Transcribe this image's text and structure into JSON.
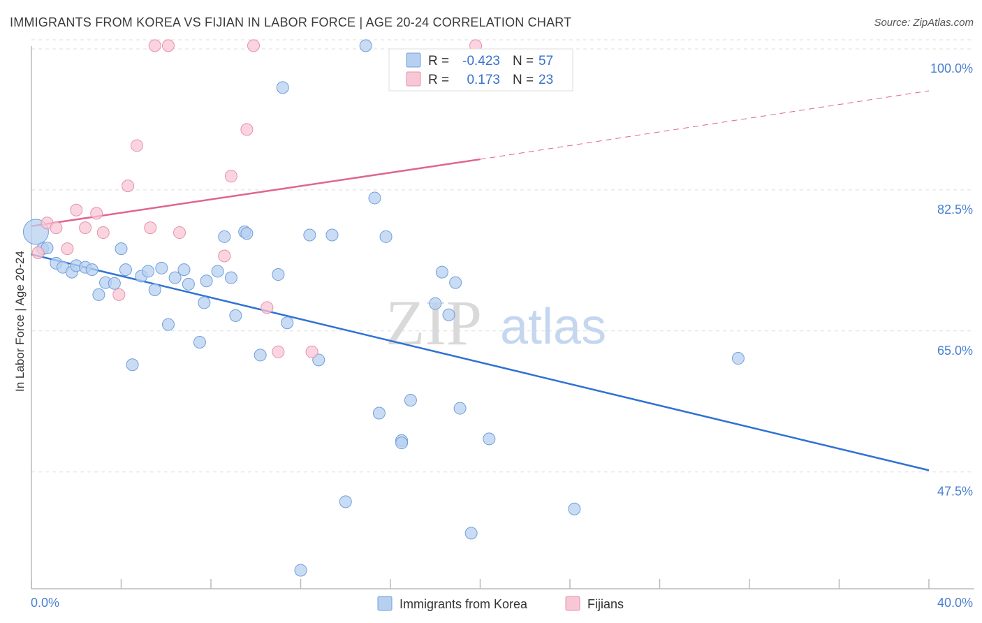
{
  "title": "IMMIGRANTS FROM KOREA VS FIJIAN IN LABOR FORCE | AGE 20-24 CORRELATION CHART",
  "source": "Source: ZipAtlas.com",
  "watermark": {
    "zip": "ZIP",
    "atlas": "atlas"
  },
  "colors": {
    "korea_fill": "#b7d0f0",
    "korea_stroke": "#6f9fdc",
    "korea_line": "#2f72d4",
    "fiji_fill": "#f8c7d6",
    "fiji_stroke": "#e890ab",
    "fiji_line": "#e0648f",
    "tick_label": "#4a7fd0",
    "grid": "#dddddd"
  },
  "legend": {
    "r_label": "R =",
    "n_label": "N =",
    "korea": {
      "r": "-0.423",
      "n": "57"
    },
    "fiji": {
      "r": "0.173",
      "n": "23"
    }
  },
  "chart_data": {
    "type": "scatter",
    "title": "IMMIGRANTS FROM KOREA VS FIJIAN IN LABOR FORCE | AGE 20-24 CORRELATION CHART",
    "xlabel": "",
    "ylabel": "In Labor Force | Age 20-24",
    "xlim": [
      0,
      40
    ],
    "ylim": [
      33,
      100
    ],
    "x_tick_labels": [
      "0.0%",
      "40.0%"
    ],
    "y_ticks": [
      47.5,
      65.0,
      82.5,
      100.0
    ],
    "y_tick_labels": [
      "47.5%",
      "65.0%",
      "82.5%",
      "100.0%"
    ],
    "grid": true,
    "legend_placement": "top-center",
    "series": [
      {
        "name": "Immigrants from Korea",
        "points": [
          [
            0.2,
            77.3
          ],
          [
            0.5,
            75.2
          ],
          [
            0.7,
            75.3
          ],
          [
            1.1,
            73.4
          ],
          [
            1.4,
            72.9
          ],
          [
            1.8,
            72.3
          ],
          [
            2.0,
            73.1
          ],
          [
            2.4,
            72.9
          ],
          [
            2.7,
            72.6
          ],
          [
            3.0,
            69.5
          ],
          [
            3.3,
            71.0
          ],
          [
            3.7,
            70.9
          ],
          [
            4.0,
            75.2
          ],
          [
            4.2,
            72.6
          ],
          [
            4.5,
            60.8
          ],
          [
            4.9,
            71.8
          ],
          [
            5.2,
            72.4
          ],
          [
            5.5,
            70.1
          ],
          [
            5.8,
            72.8
          ],
          [
            6.1,
            65.8
          ],
          [
            6.4,
            71.6
          ],
          [
            6.8,
            72.6
          ],
          [
            7.0,
            70.8
          ],
          [
            7.5,
            63.6
          ],
          [
            7.7,
            68.5
          ],
          [
            7.8,
            71.2
          ],
          [
            8.3,
            72.4
          ],
          [
            8.6,
            76.7
          ],
          [
            8.9,
            71.6
          ],
          [
            9.1,
            66.9
          ],
          [
            9.5,
            77.3
          ],
          [
            9.6,
            77.1
          ],
          [
            10.2,
            62.0
          ],
          [
            11.0,
            72.0
          ],
          [
            11.2,
            95.2
          ],
          [
            11.4,
            66.0
          ],
          [
            12.4,
            76.9
          ],
          [
            12.8,
            61.4
          ],
          [
            13.4,
            76.9
          ],
          [
            14.0,
            43.8
          ],
          [
            14.9,
            100.4
          ],
          [
            15.3,
            81.5
          ],
          [
            15.5,
            54.8
          ],
          [
            15.8,
            76.7
          ],
          [
            16.5,
            51.4
          ],
          [
            16.5,
            51.1
          ],
          [
            16.9,
            56.4
          ],
          [
            18.0,
            68.4
          ],
          [
            18.3,
            72.3
          ],
          [
            18.6,
            67.0
          ],
          [
            18.9,
            71.0
          ],
          [
            19.1,
            55.4
          ],
          [
            19.6,
            39.9
          ],
          [
            20.4,
            51.6
          ],
          [
            24.2,
            42.9
          ],
          [
            31.5,
            61.6
          ],
          [
            12.0,
            35.3
          ]
        ]
      },
      {
        "name": "Fijians",
        "points": [
          [
            0.3,
            74.7
          ],
          [
            0.7,
            78.4
          ],
          [
            1.1,
            77.8
          ],
          [
            1.6,
            75.2
          ],
          [
            2.0,
            80.0
          ],
          [
            2.4,
            77.8
          ],
          [
            2.9,
            79.6
          ],
          [
            3.2,
            77.2
          ],
          [
            3.9,
            69.5
          ],
          [
            4.3,
            83.0
          ],
          [
            4.7,
            88.0
          ],
          [
            5.3,
            77.8
          ],
          [
            5.5,
            100.4
          ],
          [
            6.1,
            100.4
          ],
          [
            6.6,
            77.2
          ],
          [
            8.6,
            74.3
          ],
          [
            8.9,
            84.2
          ],
          [
            9.6,
            90.0
          ],
          [
            9.9,
            100.4
          ],
          [
            10.5,
            67.9
          ],
          [
            11.0,
            62.4
          ],
          [
            12.5,
            62.4
          ],
          [
            19.8,
            100.4
          ]
        ]
      }
    ],
    "trend_lines": [
      {
        "series": "Immigrants from Korea",
        "x": [
          0,
          40
        ],
        "y": [
          74.5,
          47.7
        ],
        "style": "solid"
      },
      {
        "series": "Fijians",
        "x": [
          0,
          20
        ],
        "y": [
          78.0,
          86.3
        ],
        "style": "solid"
      },
      {
        "series": "Fijians",
        "x": [
          20,
          40
        ],
        "y": [
          86.3,
          94.8
        ],
        "style": "dashed"
      }
    ]
  },
  "bottom_legend": {
    "korea_label": "Immigrants from Korea",
    "fiji_label": "Fijians"
  }
}
